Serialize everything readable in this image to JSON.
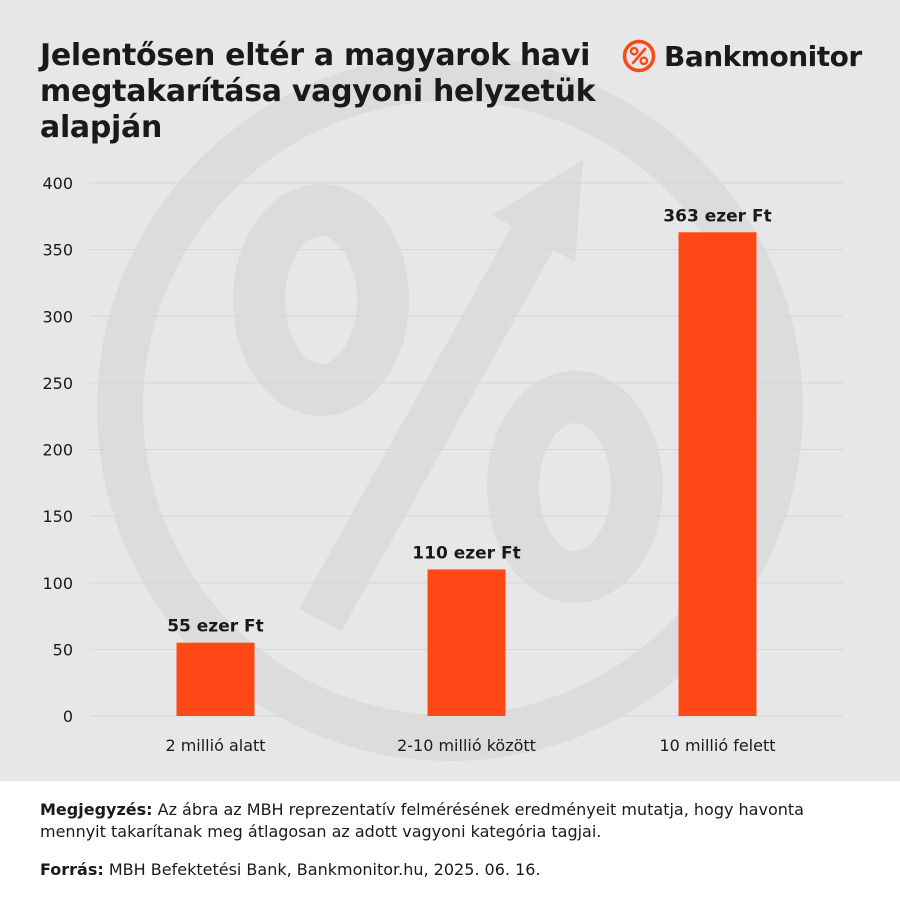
{
  "title": "Jelentősen eltér a magyarok havi megtakarítása vagyoni helyzetük alapján",
  "brand": {
    "name": "Bankmonitor",
    "icon": "percent-circle-icon"
  },
  "colors": {
    "bar": "#ff4816",
    "brand": "#ff4816",
    "background": "#e7e7e7",
    "text": "#1a1a1a"
  },
  "chart_data": {
    "type": "bar",
    "title": "Jelentősen eltér a magyarok havi megtakarítása vagyoni helyzetük alapján",
    "categories": [
      "2 millió alatt",
      "2-10 millió között",
      "10 millió felett"
    ],
    "values": [
      55,
      110,
      363
    ],
    "data_labels": [
      "55 ezer Ft",
      "110 ezer Ft",
      "363 ezer Ft"
    ],
    "ylim": [
      0,
      400
    ],
    "yticks": [
      0,
      50,
      100,
      150,
      200,
      250,
      300,
      350,
      400
    ],
    "xlabel": "",
    "ylabel": "",
    "grid": true,
    "legend": "none"
  },
  "footer": {
    "note_label": "Megjegyzés:",
    "note_text": " Az ábra az MBH reprezentatív felmérésének eredményeit mutatja, hogy havonta mennyit takarítanak meg átlagosan az adott vagyoni kategória tagjai.",
    "source_label": "Forrás:",
    "source_text": " MBH Befektetési Bank, Bankmonitor.hu, 2025. 06. 16."
  }
}
